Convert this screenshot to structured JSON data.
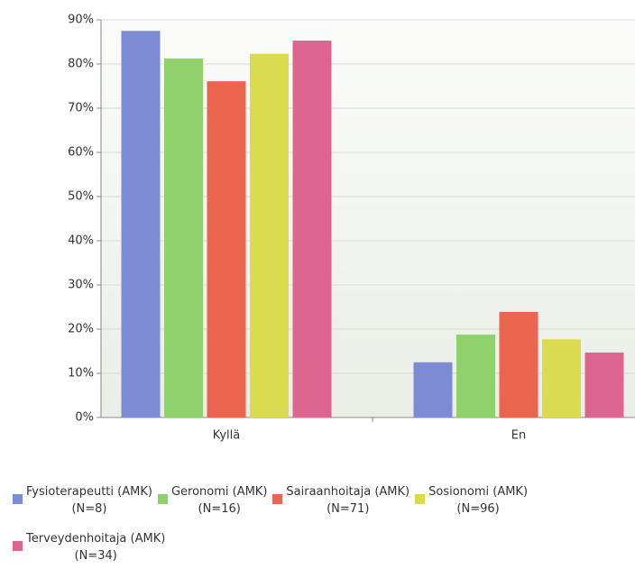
{
  "chart_data": {
    "type": "bar",
    "categories": [
      "Kyllä",
      "En"
    ],
    "series": [
      {
        "name": "Fysioterapeutti (AMK)\n(N=8)",
        "color": "#7b8bd4",
        "values": [
          87.5,
          12.5
        ]
      },
      {
        "name": "Geronomi (AMK)\n(N=16)",
        "color": "#8fd16a",
        "values": [
          81.25,
          18.75
        ]
      },
      {
        "name": "Sairaanhoitaja (AMK)\n(N=71)",
        "color": "#ea6450",
        "values": [
          76.1,
          23.9
        ]
      },
      {
        "name": "Sosionomi (AMK)\n(N=96)",
        "color": "#dbdb50",
        "values": [
          82.3,
          17.7
        ]
      },
      {
        "name": "Terveydenhoitaja (AMK)\n(N=34)",
        "color": "#dc6690",
        "values": [
          85.3,
          14.7
        ]
      }
    ],
    "ylim": [
      0,
      90
    ],
    "yticks": [
      {
        "value": 0,
        "label": "0%"
      },
      {
        "value": 10,
        "label": "10%"
      },
      {
        "value": 20,
        "label": "20%"
      },
      {
        "value": 30,
        "label": "30%"
      },
      {
        "value": 40,
        "label": "40%"
      },
      {
        "value": 50,
        "label": "50%"
      },
      {
        "value": 60,
        "label": "60%"
      },
      {
        "value": 70,
        "label": "70%"
      },
      {
        "value": 80,
        "label": "80%"
      },
      {
        "value": 90,
        "label": "90%"
      }
    ],
    "grid": true
  }
}
